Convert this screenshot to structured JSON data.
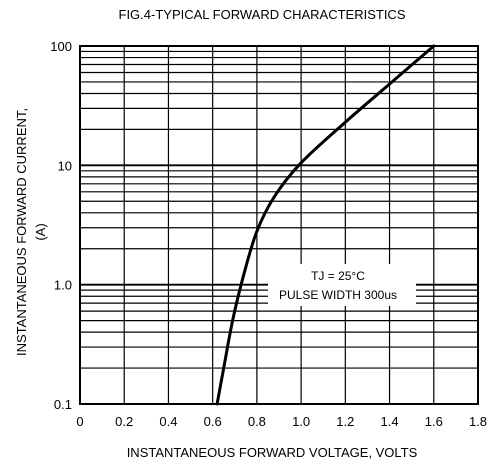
{
  "chart_data": {
    "type": "line",
    "title": "FIG.4-TYPICAL FORWARD CHARACTERISTICS",
    "xlabel": "INSTANTANEOUS FORWARD VOLTAGE, VOLTS",
    "ylabel_line1": "INSTANTANEOUS FORWARD CURRENT,",
    "ylabel_line2": "(A)",
    "xlim": [
      0,
      1.8
    ],
    "ylim": [
      0.1,
      100
    ],
    "yscale": "log",
    "grid": true,
    "x_ticks": [
      "0",
      "0.2",
      "0.4",
      "0.6",
      "0.8",
      "1.0",
      "1.2",
      "1.4",
      "1.6",
      "1.8"
    ],
    "y_ticks": [
      "0.1",
      "1.0",
      "10",
      "100"
    ],
    "annotation_line1": "TJ = 25°C",
    "annotation_line2": "PULSE WIDTH 300us",
    "series": [
      {
        "x": [
          0.62,
          0.65,
          0.69,
          0.74,
          0.8,
          0.88,
          1.0,
          1.2,
          1.4,
          1.6
        ],
        "y": [
          0.1,
          0.2,
          0.5,
          1.2,
          2.8,
          5.5,
          10.5,
          23,
          48,
          100
        ]
      }
    ]
  }
}
